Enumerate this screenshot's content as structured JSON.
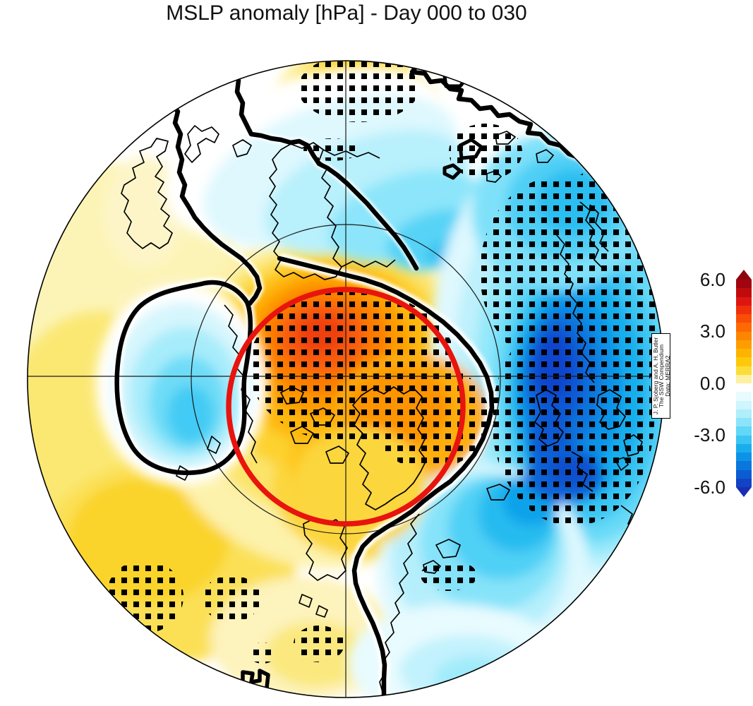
{
  "title": "MSLP anomaly [hPa] - Day 000 to 030",
  "map": {
    "red_circle_color": "#e8140e",
    "projection": "Northern Hemisphere polar stereographic",
    "overlays": {
      "red_circle": "red circle around the polar cap",
      "stippling": "black square stippling",
      "zero_contour": "thick black 0 hPa contour",
      "graticule": "latitude circle and meridian crosshair"
    }
  },
  "colorbar": {
    "ticks": [
      "6.0",
      "3.0",
      "0.0",
      "-3.0",
      "-6.0"
    ],
    "palette": [
      "#a00510",
      "#c00b0c",
      "#dd1710",
      "#f0300c",
      "#fa4d07",
      "#fd6a02",
      "#fe8500",
      "#fe9d00",
      "#feb300",
      "#fdc90a",
      "#fbdd3a",
      "#fdf0a0",
      "#ffffff",
      "#e8fbfe",
      "#cff5fd",
      "#b0eefb",
      "#8ce4fa",
      "#63d7f7",
      "#3bc5f3",
      "#1aadee",
      "#0c93e7",
      "#0a77dd",
      "#0b5cd3",
      "#1243c6"
    ],
    "arrow_top": "#8c030e",
    "arrow_bottom": "#182eb4"
  },
  "attribution": {
    "line1": "J. P. Sjoberg and A. H. Butler",
    "line2": "The SSW Compendium",
    "line3": "Data: MERRA2"
  },
  "chart_data": {
    "type": "heatmap",
    "title": "MSLP anomaly [hPa] - Day 000 to 030",
    "variable": "Mean sea level pressure anomaly",
    "units": "hPa",
    "day_range": "000 to 030",
    "projection": "Northern Hemisphere polar stereographic (pole-centered)",
    "colorbar": {
      "min": -6.0,
      "max": 6.0,
      "ticks": [
        6.0,
        3.0,
        0.0,
        -3.0,
        -6.0
      ],
      "band_interval": 0.5,
      "extended_ends": true
    },
    "anomaly_centers": [
      {
        "region": "Arctic / pole toward Canadian Arctic",
        "sign": "positive",
        "approx_peak_hPa": 5.5,
        "stippled": true
      },
      {
        "region": "Siberia (top of map)",
        "sign": "positive",
        "approx_peak_hPa": 2.0,
        "stippled": true
      },
      {
        "region": "Canada / central North America",
        "sign": "positive",
        "approx_peak_hPa": 2.5,
        "stippled": "patchy"
      },
      {
        "region": "Scandinavia / northern Europe",
        "sign": "negative",
        "approx_peak_hPa": -5.0,
        "stippled": true
      },
      {
        "region": "Barents-Kara Seas (upper right)",
        "sign": "negative",
        "approx_peak_hPa": -3.0,
        "stippled": true
      },
      {
        "region": "Northwest Atlantic",
        "sign": "negative",
        "approx_peak_hPa": -4.0,
        "stippled": "patchy"
      },
      {
        "region": "Sea of Okhotsk / NW Pacific (left)",
        "sign": "negative",
        "approx_peak_hPa": -2.0,
        "stippled": false
      },
      {
        "region": "Chukchi-East Siberian band (upper left of pole)",
        "sign": "negative",
        "approx_peak_hPa": -1.5,
        "stippled": false
      }
    ],
    "annotations": [
      "red circle drawn around the polar cap",
      "black square stippling marks statistical significance",
      "thick black contour marks the 0 hPa line"
    ]
  }
}
